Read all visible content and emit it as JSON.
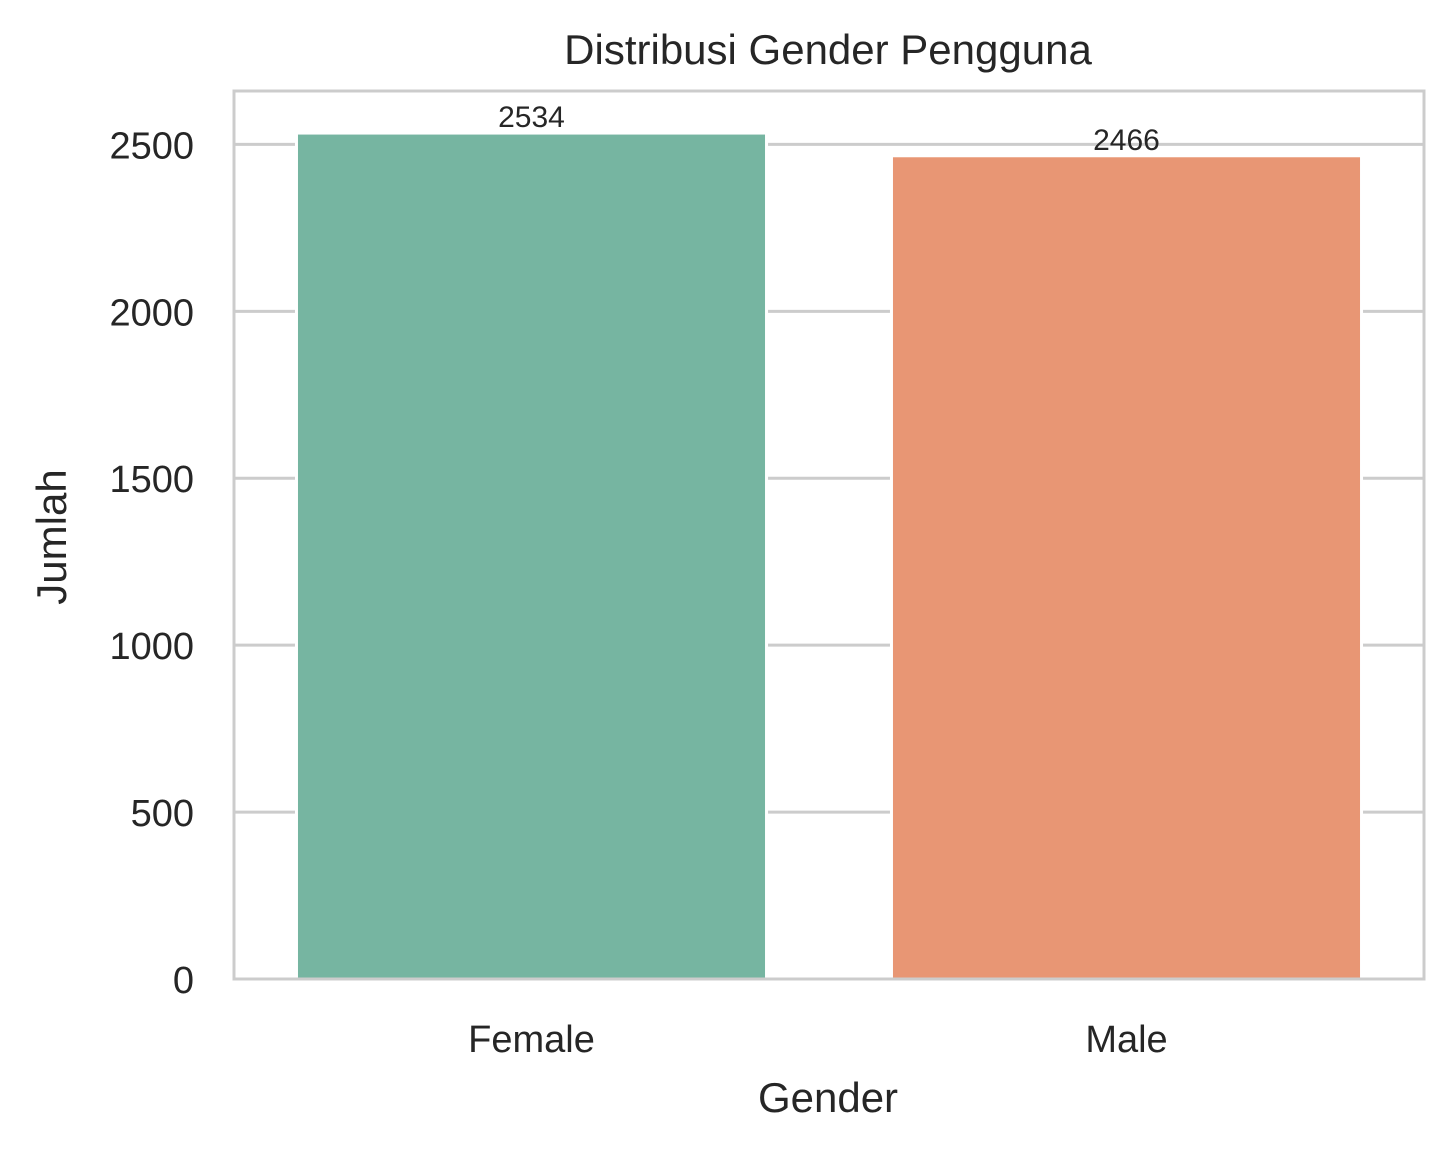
{
  "chart_data": {
    "type": "bar",
    "title": "Distribusi Gender Pengguna",
    "xlabel": "Gender",
    "ylabel": "Jumlah",
    "categories": [
      "Female",
      "Male"
    ],
    "values": [
      2534,
      2466
    ],
    "data_labels": [
      "2534",
      "2466"
    ],
    "colors": [
      "#76b5a1",
      "#e89674"
    ],
    "ylim": [
      0,
      2660
    ],
    "yticks": [
      0,
      500,
      1000,
      1500,
      2000,
      2500
    ],
    "ytick_labels": [
      "0",
      "500",
      "1000",
      "1500",
      "2000",
      "2500"
    ],
    "grid": true,
    "grid_color": "#cccccc",
    "spine_color": "#cccccc"
  }
}
